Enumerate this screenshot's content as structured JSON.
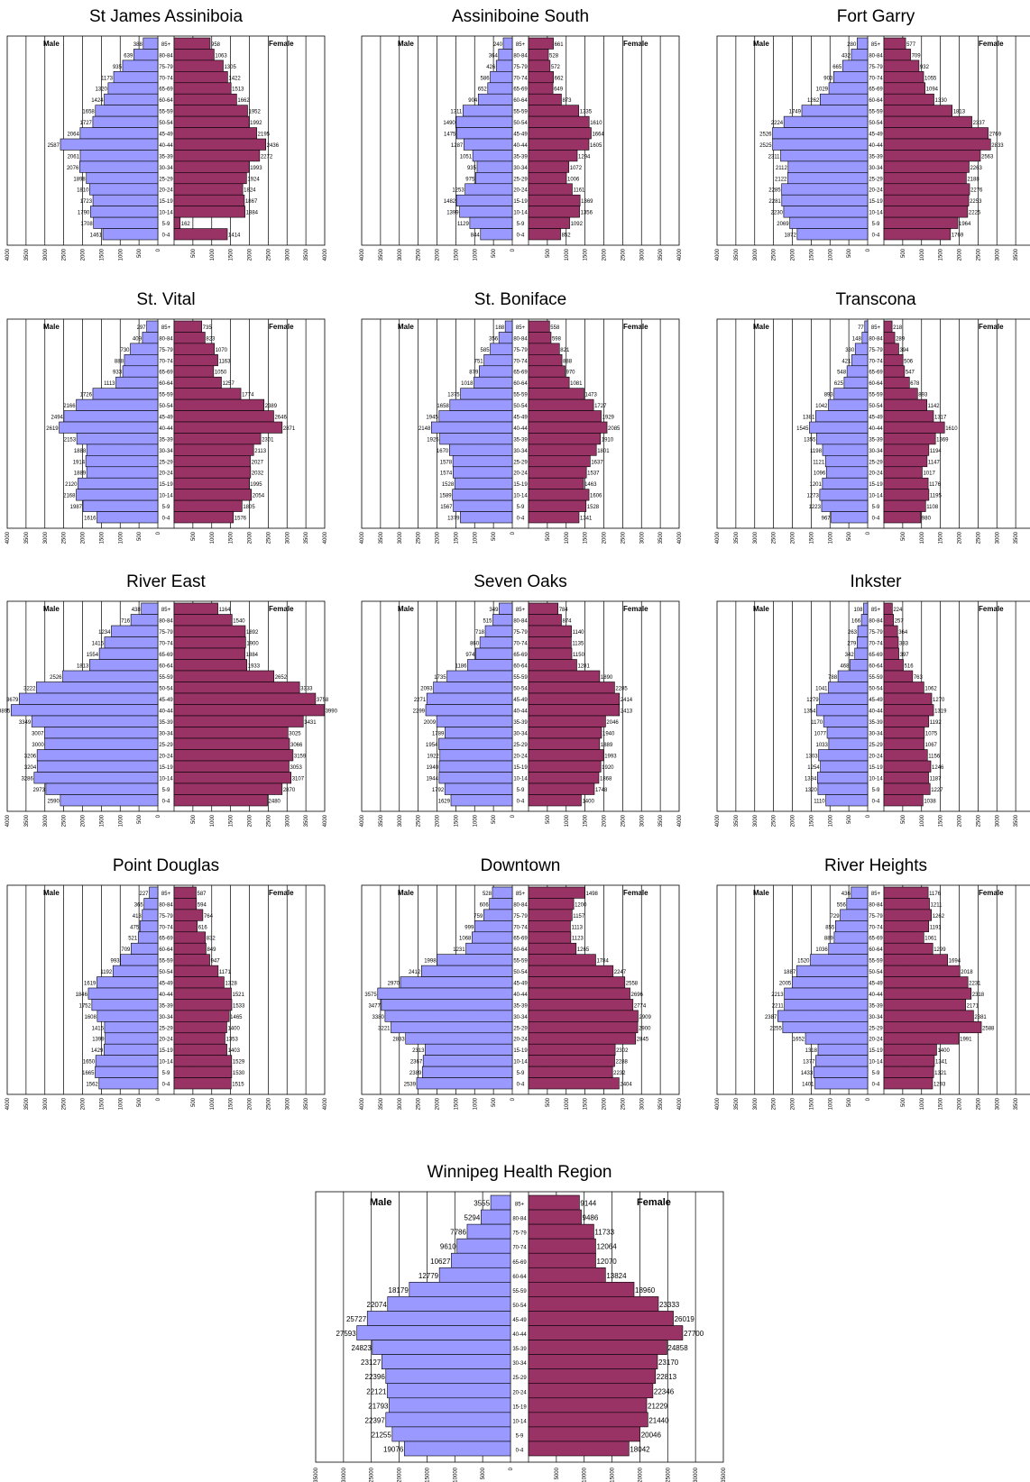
{
  "age_groups": [
    "85+",
    "80-84",
    "75-79",
    "70-74",
    "65-69",
    "60-64",
    "55-59",
    "50-54",
    "45-49",
    "40-44",
    "35-39",
    "30-34",
    "25-29",
    "20-24",
    "15-19",
    "10-14",
    "5-9",
    "0-4"
  ],
  "labels": {
    "male": "Male",
    "female": "Female"
  },
  "colors": {
    "male": "#9999ff",
    "female": "#993366",
    "grid": "#000000"
  },
  "chart_data": [
    {
      "type": "bar",
      "title": "St James Assiniboia",
      "xlim": [
        -4000,
        4000
      ],
      "ticks": [
        "4000",
        "3500",
        "3000",
        "2500",
        "2000",
        "1500",
        "1000",
        "500",
        "0",
        "500",
        "1000",
        "1500",
        "2000",
        "2500",
        "3000",
        "3500",
        "4000"
      ],
      "series": [
        {
          "name": "Male",
          "values": [
            388,
            639,
            935,
            1173,
            1320,
            1424,
            1658,
            1727,
            2064,
            2587,
            2061,
            2076,
            1898,
            1810,
            1723,
            1790,
            1708,
            1461
          ]
        },
        {
          "name": "Female",
          "values": [
            958,
            1063,
            1305,
            1422,
            1513,
            1662,
            1952,
            1992,
            2195,
            2436,
            2272,
            1993,
            1924,
            1824,
            1867,
            1884,
            162,
            1414
          ]
        }
      ]
    },
    {
      "type": "bar",
      "title": "Assiniboine South",
      "xlim": [
        -4000,
        4000
      ],
      "ticks": [
        "4000",
        "3500",
        "3000",
        "2500",
        "2000",
        "1500",
        "1000",
        "500",
        "0",
        "500",
        "1000",
        "1500",
        "2000",
        "2500",
        "3000",
        "3500",
        "4000"
      ],
      "series": [
        {
          "name": "Male",
          "values": [
            240,
            364,
            426,
            586,
            652,
            904,
            1311,
            1490,
            1475,
            1287,
            1051,
            935,
            975,
            1253,
            1482,
            1399,
            1129,
            844
          ]
        },
        {
          "name": "Female",
          "values": [
            661,
            528,
            572,
            662,
            649,
            873,
            1335,
            1610,
            1664,
            1605,
            1294,
            1072,
            1006,
            1161,
            1369,
            1356,
            1092,
            852
          ]
        }
      ]
    },
    {
      "type": "bar",
      "title": "Fort Garry",
      "xlim": [
        -4000,
        4000
      ],
      "ticks": [
        "4000",
        "3500",
        "3000",
        "2500",
        "2000",
        "1500",
        "1000",
        "500",
        "0",
        "500",
        "1000",
        "1500",
        "2000",
        "2500",
        "3000",
        "3500",
        "4000"
      ],
      "series": [
        {
          "name": "Male",
          "values": [
            280,
            432,
            665,
            903,
            1029,
            1262,
            1749,
            2224,
            2526,
            2525,
            2311,
            2112,
            2122,
            2285,
            2281,
            2230,
            2069,
            1872
          ]
        },
        {
          "name": "Female",
          "values": [
            577,
            709,
            932,
            1055,
            1094,
            1330,
            1813,
            2337,
            2769,
            2833,
            2563,
            2263,
            2188,
            2276,
            2253,
            2225,
            1964,
            1769
          ]
        }
      ]
    },
    {
      "type": "bar",
      "title": "St. Vital",
      "xlim": [
        -4000,
        4000
      ],
      "ticks": [
        "4000",
        "3500",
        "3000",
        "2500",
        "2000",
        "1500",
        "1000",
        "500",
        "0",
        "500",
        "1000",
        "1500",
        "2000",
        "2500",
        "3000",
        "3500",
        "4000"
      ],
      "series": [
        {
          "name": "Male",
          "values": [
            297,
            409,
            730,
            888,
            933,
            1113,
            1726,
            2166,
            2494,
            2619,
            2153,
            1888,
            1914,
            1889,
            2120,
            2168,
            1987,
            1616
          ]
        },
        {
          "name": "Female",
          "values": [
            735,
            823,
            1070,
            1163,
            1050,
            1257,
            1774,
            2389,
            2646,
            2871,
            2301,
            2113,
            2027,
            2032,
            1995,
            2054,
            1805,
            1576
          ]
        }
      ]
    },
    {
      "type": "bar",
      "title": "St. Boniface",
      "xlim": [
        -4000,
        4000
      ],
      "ticks": [
        "4000",
        "3500",
        "3000",
        "2500",
        "2000",
        "1500",
        "1000",
        "500",
        "0",
        "500",
        "1000",
        "1500",
        "2000",
        "2500",
        "3000",
        "3500",
        "4000"
      ],
      "series": [
        {
          "name": "Male",
          "values": [
            188,
            356,
            585,
            751,
            879,
            1018,
            1375,
            1658,
            1945,
            2148,
            1925,
            1670,
            1578,
            1574,
            1528,
            1589,
            1567,
            1379
          ]
        },
        {
          "name": "Female",
          "values": [
            558,
            598,
            821,
            888,
            970,
            1081,
            1473,
            1727,
            1929,
            2085,
            1910,
            1801,
            1637,
            1537,
            1463,
            1606,
            1528,
            1341
          ]
        }
      ]
    },
    {
      "type": "bar",
      "title": "Transcona",
      "xlim": [
        -4000,
        4000
      ],
      "ticks": [
        "4000",
        "3500",
        "3000",
        "2500",
        "2000",
        "1500",
        "1000",
        "500",
        "0",
        "500",
        "1000",
        "1500",
        "2000",
        "2500",
        "3000",
        "3500",
        "4000"
      ],
      "series": [
        {
          "name": "Male",
          "values": [
            77,
            148,
            330,
            421,
            548,
            625,
            893,
            1042,
            1381,
            1545,
            1355,
            1198,
            1121,
            1096,
            1201,
            1273,
            1223,
            967
          ]
        },
        {
          "name": "Female",
          "values": [
            218,
            289,
            394,
            506,
            547,
            678,
            893,
            1142,
            1317,
            1610,
            1369,
            1194,
            1147,
            1017,
            1176,
            1195,
            1108,
            980
          ]
        }
      ]
    },
    {
      "type": "bar",
      "title": "River East",
      "xlim": [
        -4000,
        4000
      ],
      "ticks": [
        "4000",
        "3500",
        "3000",
        "2500",
        "2000",
        "1500",
        "1000",
        "500",
        "0",
        "500",
        "1000",
        "1500",
        "2000",
        "2500",
        "3000",
        "3500",
        "4000"
      ],
      "series": [
        {
          "name": "Male",
          "values": [
            438,
            716,
            1234,
            1415,
            1554,
            1813,
            2526,
            3222,
            3679,
            3895,
            3349,
            3007,
            3000,
            3206,
            3204,
            3286,
            2973,
            2590
          ]
        },
        {
          "name": "Female",
          "values": [
            1164,
            1540,
            1892,
            1900,
            1884,
            1933,
            2652,
            3333,
            3758,
            3990,
            3431,
            3025,
            3066,
            3159,
            3053,
            3107,
            2870,
            2480
          ]
        }
      ]
    },
    {
      "type": "bar",
      "title": "Seven Oaks",
      "xlim": [
        -4000,
        4000
      ],
      "ticks": [
        "4000",
        "3500",
        "3000",
        "2500",
        "2000",
        "1500",
        "1000",
        "500",
        "0",
        "500",
        "1000",
        "1500",
        "2000",
        "2500",
        "3000",
        "3500",
        "4000"
      ],
      "series": [
        {
          "name": "Male",
          "values": [
            349,
            515,
            718,
            860,
            974,
            1186,
            1735,
            2093,
            2271,
            2299,
            2009,
            1789,
            1954,
            1922,
            1940,
            1944,
            1792,
            1629
          ]
        },
        {
          "name": "Female",
          "values": [
            784,
            874,
            1140,
            1135,
            1150,
            1281,
            1890,
            2285,
            2414,
            2413,
            2046,
            1940,
            1889,
            1993,
            1920,
            1868,
            1748,
            1400
          ]
        }
      ]
    },
    {
      "type": "bar",
      "title": "Inkster",
      "xlim": [
        -4000,
        4000
      ],
      "ticks": [
        "4000",
        "3500",
        "3000",
        "2500",
        "2000",
        "1500",
        "1000",
        "500",
        "0",
        "500",
        "1000",
        "1500",
        "2000",
        "2500",
        "3000",
        "3500",
        "4000"
      ],
      "series": [
        {
          "name": "Male",
          "values": [
            108,
            166,
            263,
            279,
            342,
            468,
            788,
            1041,
            1279,
            1354,
            1170,
            1077,
            1033,
            1303,
            1254,
            1334,
            1320,
            1110
          ]
        },
        {
          "name": "Female",
          "values": [
            224,
            257,
            364,
            383,
            397,
            516,
            763,
            1062,
            1270,
            1319,
            1192,
            1075,
            1067,
            1156,
            1246,
            1187,
            1227,
            1038
          ]
        }
      ]
    },
    {
      "type": "bar",
      "title": "Point Douglas",
      "xlim": [
        -4000,
        4000
      ],
      "ticks": [
        "4000",
        "3500",
        "3000",
        "2500",
        "2000",
        "1500",
        "1000",
        "500",
        "0",
        "500",
        "1000",
        "1500",
        "2000",
        "2500",
        "3000",
        "3500",
        "4000"
      ],
      "series": [
        {
          "name": "Male",
          "values": [
            227,
            365,
            413,
            475,
            521,
            709,
            993,
            1192,
            1619,
            1846,
            1752,
            1608,
            1415,
            1399,
            1429,
            1650,
            1665,
            1562
          ]
        },
        {
          "name": "Female",
          "values": [
            587,
            594,
            764,
            616,
            832,
            849,
            947,
            1171,
            1328,
            1521,
            1533,
            1465,
            1400,
            1353,
            1403,
            1529,
            1530,
            1515
          ]
        }
      ]
    },
    {
      "type": "bar",
      "title": "Downtown",
      "xlim": [
        -4000,
        4000
      ],
      "ticks": [
        "4000",
        "3500",
        "3000",
        "2500",
        "2000",
        "1500",
        "1000",
        "500",
        "0",
        "500",
        "1000",
        "1500",
        "2000",
        "2500",
        "3000",
        "3500",
        "4000"
      ],
      "series": [
        {
          "name": "Male",
          "values": [
            528,
            606,
            759,
            999,
            1068,
            1231,
            1998,
            2412,
            2970,
            3575,
            3477,
            3380,
            3221,
            2833,
            2313,
            2367,
            2389,
            2539
          ]
        },
        {
          "name": "Female",
          "values": [
            1498,
            1200,
            1157,
            1113,
            1123,
            1265,
            1784,
            2247,
            2558,
            2696,
            2774,
            2909,
            2900,
            2845,
            2302,
            2288,
            2232,
            2404
          ]
        }
      ]
    },
    {
      "type": "bar",
      "title": "River Heights",
      "xlim": [
        -4000,
        4000
      ],
      "ticks": [
        "4000",
        "3500",
        "3000",
        "2500",
        "2000",
        "1500",
        "1000",
        "500",
        "0",
        "500",
        "1000",
        "1500",
        "2000",
        "2500",
        "3000",
        "3500",
        "4000"
      ],
      "series": [
        {
          "name": "Male",
          "values": [
            436,
            556,
            729,
            855,
            889,
            1036,
            1520,
            1887,
            2005,
            2213,
            2211,
            2387,
            2255,
            1652,
            1318,
            1377,
            1433,
            1401
          ]
        },
        {
          "name": "Female",
          "values": [
            1176,
            1211,
            1262,
            1191,
            1061,
            1299,
            1694,
            2018,
            2231,
            2318,
            2171,
            2381,
            2588,
            1991,
            1400,
            1341,
            1321,
            1293
          ]
        }
      ]
    },
    {
      "type": "bar",
      "title": "Winnipeg Health Region",
      "xlim": [
        -35000,
        35000
      ],
      "ticks": [
        "35000",
        "30000",
        "25000",
        "20000",
        "15000",
        "10000",
        "5000",
        "0",
        "5000",
        "10000",
        "15000",
        "20000",
        "25000",
        "30000",
        "35000"
      ],
      "series": [
        {
          "name": "Male",
          "values": [
            3555,
            5294,
            7786,
            9610,
            10627,
            12779,
            18179,
            22074,
            25727,
            27593,
            24823,
            23127,
            22396,
            22121,
            21793,
            22397,
            21255,
            19076
          ]
        },
        {
          "name": "Female",
          "values": [
            9144,
            9486,
            11733,
            12064,
            12070,
            13824,
            18960,
            23333,
            26019,
            27700,
            24858,
            23170,
            22813,
            22346,
            21229,
            21440,
            20046,
            18042
          ]
        }
      ]
    }
  ]
}
